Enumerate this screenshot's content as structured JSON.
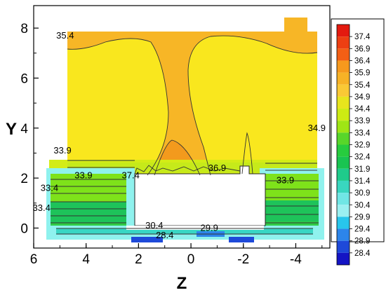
{
  "chart_data": {
    "type": "heatmap",
    "xlabel": "Z",
    "ylabel": "Y",
    "x_axis": {
      "range": [
        6,
        -5.3
      ],
      "reversed": true,
      "ticks": [
        "6",
        "4",
        "2",
        "0",
        "-2",
        "-4"
      ]
    },
    "y_axis": {
      "range": [
        -0.8,
        8.9
      ],
      "ticks": [
        "0",
        "2",
        "4",
        "6",
        "8"
      ]
    },
    "legend": {
      "placement": "right",
      "levels": [
        "37.4",
        "36.9",
        "36.4",
        "35.9",
        "35.4",
        "34.9",
        "34.4",
        "33.9",
        "33.4",
        "32.9",
        "32.4",
        "31.9",
        "31.4",
        "30.9",
        "30.4",
        "29.9",
        "29.4",
        "28.9",
        "28.4"
      ],
      "colors": [
        "#e41a0f",
        "#ed3f12",
        "#f35f15",
        "#f6991d",
        "#f7b226",
        "#fac935",
        "#e8e51d",
        "#cdeb13",
        "#9fe515",
        "#58d62a",
        "#27cc3e",
        "#19c451",
        "#1fcb8b",
        "#39d6bf",
        "#70e6e5",
        "#9bf0f1",
        "#28c6ec",
        "#2d85ea",
        "#1e49d9",
        "#1414c4"
      ]
    },
    "contour_labels": [
      {
        "text": "35.4",
        "z": 4.8,
        "y": 7.7
      },
      {
        "text": "34.9",
        "z": -4.8,
        "y": 4.0
      },
      {
        "text": "33.9",
        "z": 4.9,
        "y": 3.1
      },
      {
        "text": "37.4",
        "z": 2.3,
        "y": 2.1
      },
      {
        "text": "36.9",
        "z": -1.0,
        "y": 2.4
      },
      {
        "text": "33.9",
        "z": 4.1,
        "y": 2.1
      },
      {
        "text": "33.9",
        "z": -3.6,
        "y": 1.9
      },
      {
        "text": "33.4",
        "z": 5.4,
        "y": 1.6
      },
      {
        "text": "33.4",
        "z": 5.7,
        "y": 0.8
      },
      {
        "text": "30.4",
        "z": 1.4,
        "y": 0.1
      },
      {
        "text": "28.4",
        "z": 1.0,
        "y": -0.3
      },
      {
        "text": "29.9",
        "z": -0.7,
        "y": 0.0
      }
    ],
    "grid": false
  }
}
